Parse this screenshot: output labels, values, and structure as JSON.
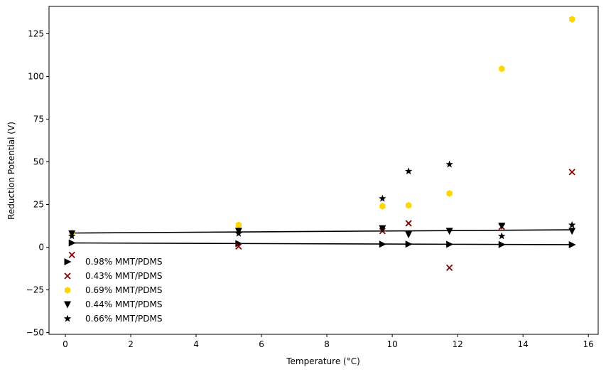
{
  "chart_data": {
    "type": "scatter",
    "title": "",
    "xlabel": "Temperature (°C)",
    "ylabel": "Reduction Potential (V)",
    "xlim": [
      -0.5,
      16.3
    ],
    "ylim": [
      -51,
      141
    ],
    "xticks": [
      0,
      2,
      4,
      6,
      8,
      10,
      12,
      14,
      16
    ],
    "yticks": [
      -50,
      -25,
      0,
      25,
      50,
      75,
      100,
      125
    ],
    "grid": false,
    "legend_position": "lower-left",
    "series": [
      {
        "name": "0.98% MMT/PDMS",
        "marker": "triangle-right",
        "color": "#000000",
        "x": [
          0.2,
          5.3,
          9.7,
          10.5,
          11.75,
          13.35,
          15.5
        ],
        "y": [
          2.5,
          2.1,
          1.8,
          1.8,
          1.7,
          1.6,
          1.5
        ],
        "fit_line": {
          "x": [
            0.2,
            15.5
          ],
          "y": [
            2.5,
            1.5
          ]
        }
      },
      {
        "name": "0.43% MMT/PDMS",
        "marker": "x",
        "color": "#8b0000",
        "x": [
          0.2,
          5.3,
          9.7,
          10.5,
          11.75,
          13.35,
          15.5
        ],
        "y": [
          -4.5,
          0.5,
          9.5,
          14,
          -12,
          12,
          44
        ]
      },
      {
        "name": "0.69% MMT/PDMS",
        "marker": "hexagon",
        "color": "#ffd700",
        "x": [
          0.2,
          5.3,
          9.7,
          10.5,
          11.75,
          13.35,
          15.5
        ],
        "y": [
          8.5,
          13,
          24,
          24.5,
          31.5,
          104.5,
          133.5
        ]
      },
      {
        "name": "0.44% MMT/PDMS",
        "marker": "triangle-down",
        "color": "#000000",
        "x": [
          0.2,
          5.3,
          9.7,
          10.5,
          11.75,
          13.35,
          15.5
        ],
        "y": [
          8.0,
          9.5,
          11,
          7.5,
          9.5,
          12.5,
          9.5
        ],
        "fit_line": {
          "x": [
            0.2,
            15.5
          ],
          "y": [
            8.3,
            10.2
          ]
        }
      },
      {
        "name": "0.66% MMT/PDMS",
        "marker": "star",
        "color": "#000000",
        "x": [
          0.2,
          5.3,
          9.7,
          10.5,
          11.75,
          13.35,
          15.5
        ],
        "y": [
          6.5,
          8.0,
          28.5,
          44.5,
          48.5,
          6.5,
          13
        ]
      }
    ]
  }
}
